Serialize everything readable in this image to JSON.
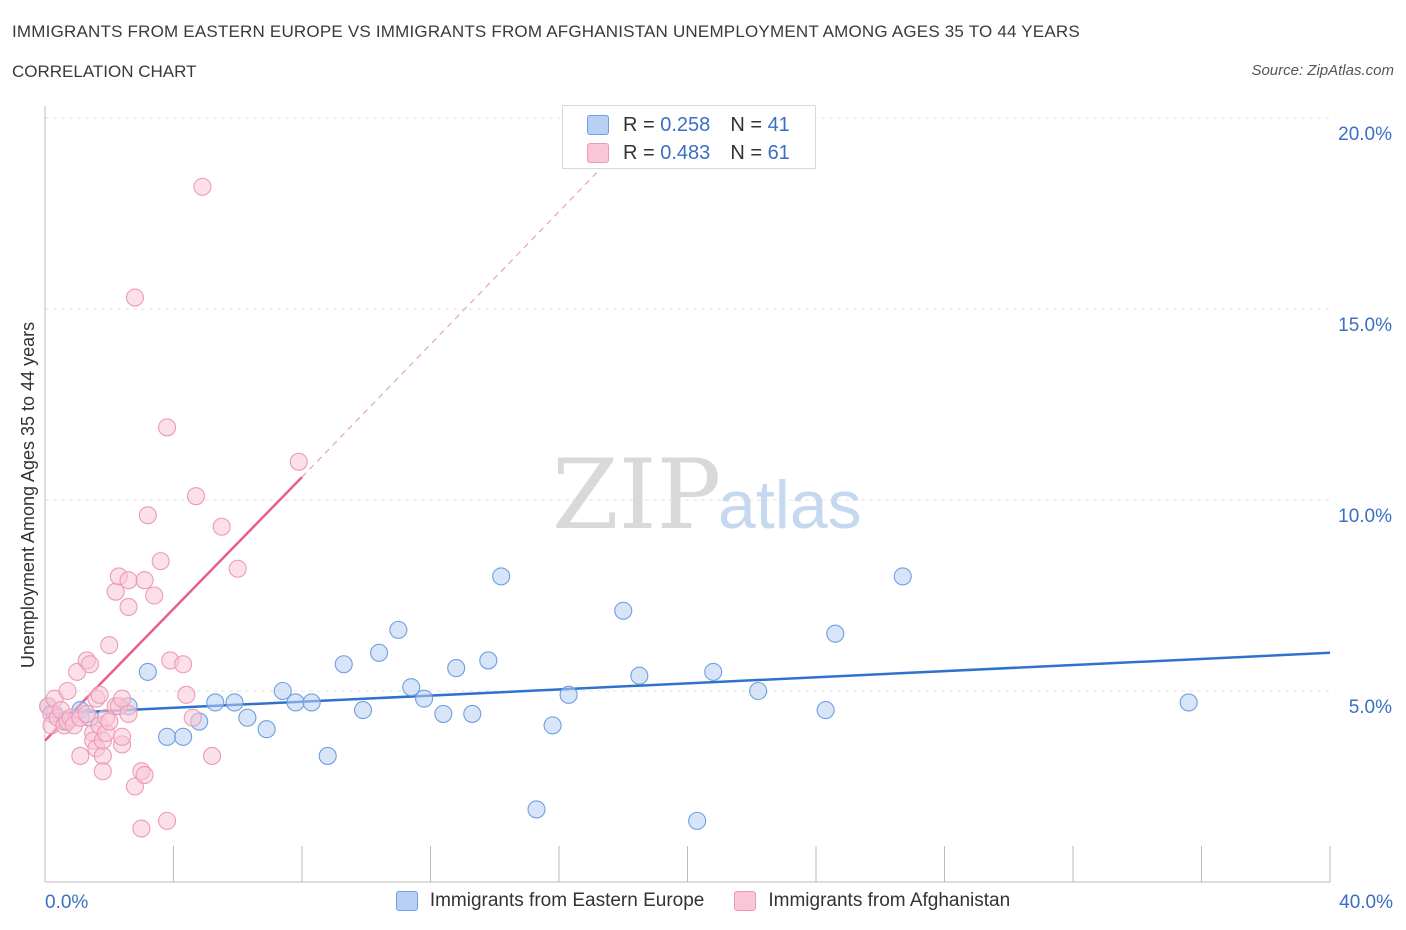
{
  "title": "IMMIGRANTS FROM EASTERN EUROPE VS IMMIGRANTS FROM AFGHANISTAN UNEMPLOYMENT AMONG AGES 35 TO 44 YEARS",
  "subtitle": "CORRELATION CHART",
  "source": "Source: ZipAtlas.com",
  "watermark": {
    "zip": "ZIP",
    "atlas": "atlas"
  },
  "legend": {
    "r_label": "R = ",
    "n_label": "N = ",
    "rows": [
      {
        "r": "0.258",
        "n": "41"
      },
      {
        "r": "0.483",
        "n": "61"
      }
    ]
  },
  "chart_data": {
    "type": "scatter",
    "title": "IMMIGRANTS FROM EASTERN EUROPE VS IMMIGRANTS FROM AFGHANISTAN UNEMPLOYMENT AMONG AGES 35 TO 44 YEARS",
    "xlabel": "",
    "ylabel": "Unemployment Among Ages 35 to 44 years",
    "xlim": [
      0,
      40
    ],
    "ylim": [
      0,
      20
    ],
    "x_tick_labels": [
      "0.0%",
      "40.0%"
    ],
    "y_tick_labels": [
      "5.0%",
      "10.0%",
      "15.0%",
      "20.0%"
    ],
    "y_ticks": [
      5,
      10,
      15,
      20
    ],
    "grid": true,
    "legend_position": "top-center",
    "series": [
      {
        "name": "Immigrants from Eastern Europe",
        "color": "#6f9fe0",
        "fill": "#b8d0f4",
        "line_color": "#2f72cc",
        "trend": {
          "x0": 0,
          "y0": 4.4,
          "x1": 40,
          "y1": 6.0
        },
        "points": [
          [
            0.1,
            4.6
          ],
          [
            0.3,
            4.4
          ],
          [
            0.6,
            4.2
          ],
          [
            1.1,
            4.5
          ],
          [
            1.4,
            4.3
          ],
          [
            2.6,
            4.6
          ],
          [
            3.2,
            5.5
          ],
          [
            3.8,
            3.8
          ],
          [
            4.3,
            3.8
          ],
          [
            4.8,
            4.2
          ],
          [
            5.3,
            4.7
          ],
          [
            5.9,
            4.7
          ],
          [
            6.3,
            4.3
          ],
          [
            6.9,
            4.0
          ],
          [
            7.4,
            5.0
          ],
          [
            7.8,
            4.7
          ],
          [
            8.3,
            4.7
          ],
          [
            8.8,
            3.3
          ],
          [
            9.3,
            5.7
          ],
          [
            9.9,
            4.5
          ],
          [
            10.4,
            6.0
          ],
          [
            11.0,
            6.6
          ],
          [
            11.4,
            5.1
          ],
          [
            11.8,
            4.8
          ],
          [
            12.4,
            4.4
          ],
          [
            12.8,
            5.6
          ],
          [
            13.3,
            4.4
          ],
          [
            13.8,
            5.8
          ],
          [
            14.2,
            8.0
          ],
          [
            15.3,
            1.9
          ],
          [
            15.8,
            4.1
          ],
          [
            16.3,
            4.9
          ],
          [
            18.0,
            7.1
          ],
          [
            18.5,
            5.4
          ],
          [
            20.3,
            1.6
          ],
          [
            20.8,
            5.5
          ],
          [
            22.2,
            5.0
          ],
          [
            24.3,
            4.5
          ],
          [
            24.6,
            6.5
          ],
          [
            26.7,
            8.0
          ],
          [
            35.6,
            4.7
          ]
        ]
      },
      {
        "name": "Immigrants from Afghanistan",
        "color": "#ee9ab5",
        "fill": "#f8c6d6",
        "line_color": "#e8608a",
        "trend": {
          "x0": 0,
          "y0": 3.7,
          "x1": 8.0,
          "y1": 10.6,
          "dash_x1": 17.9,
          "dash_y1": 19.2
        },
        "points": [
          [
            0.1,
            4.6
          ],
          [
            0.2,
            4.4
          ],
          [
            0.2,
            4.1
          ],
          [
            0.3,
            4.8
          ],
          [
            0.4,
            4.3
          ],
          [
            0.5,
            4.5
          ],
          [
            0.6,
            4.1
          ],
          [
            0.7,
            5.0
          ],
          [
            0.7,
            4.2
          ],
          [
            0.8,
            4.3
          ],
          [
            0.9,
            4.1
          ],
          [
            1.0,
            5.5
          ],
          [
            1.1,
            4.3
          ],
          [
            1.1,
            3.3
          ],
          [
            1.3,
            4.4
          ],
          [
            1.3,
            5.8
          ],
          [
            1.4,
            5.7
          ],
          [
            1.5,
            3.9
          ],
          [
            1.5,
            3.7
          ],
          [
            1.6,
            4.8
          ],
          [
            1.6,
            3.5
          ],
          [
            1.7,
            4.9
          ],
          [
            1.7,
            4.1
          ],
          [
            1.8,
            3.3
          ],
          [
            1.8,
            2.9
          ],
          [
            1.8,
            3.7
          ],
          [
            1.9,
            3.9
          ],
          [
            1.9,
            4.3
          ],
          [
            2.0,
            6.2
          ],
          [
            2.0,
            4.2
          ],
          [
            2.2,
            7.6
          ],
          [
            2.2,
            4.6
          ],
          [
            2.4,
            3.6
          ],
          [
            2.4,
            3.8
          ],
          [
            2.3,
            4.6
          ],
          [
            2.4,
            4.8
          ],
          [
            2.3,
            8.0
          ],
          [
            2.6,
            4.4
          ],
          [
            2.6,
            7.2
          ],
          [
            2.6,
            7.9
          ],
          [
            2.8,
            15.3
          ],
          [
            2.8,
            2.5
          ],
          [
            3.0,
            1.4
          ],
          [
            3.0,
            2.9
          ],
          [
            3.1,
            7.9
          ],
          [
            3.1,
            2.8
          ],
          [
            3.2,
            9.6
          ],
          [
            3.4,
            7.5
          ],
          [
            3.6,
            8.4
          ],
          [
            3.8,
            1.6
          ],
          [
            3.8,
            11.9
          ],
          [
            3.9,
            5.8
          ],
          [
            4.3,
            5.7
          ],
          [
            4.4,
            4.9
          ],
          [
            4.6,
            4.3
          ],
          [
            4.7,
            10.1
          ],
          [
            4.9,
            18.2
          ],
          [
            5.2,
            3.3
          ],
          [
            5.5,
            9.3
          ],
          [
            6.0,
            8.2
          ],
          [
            7.9,
            11.0
          ]
        ]
      }
    ]
  }
}
